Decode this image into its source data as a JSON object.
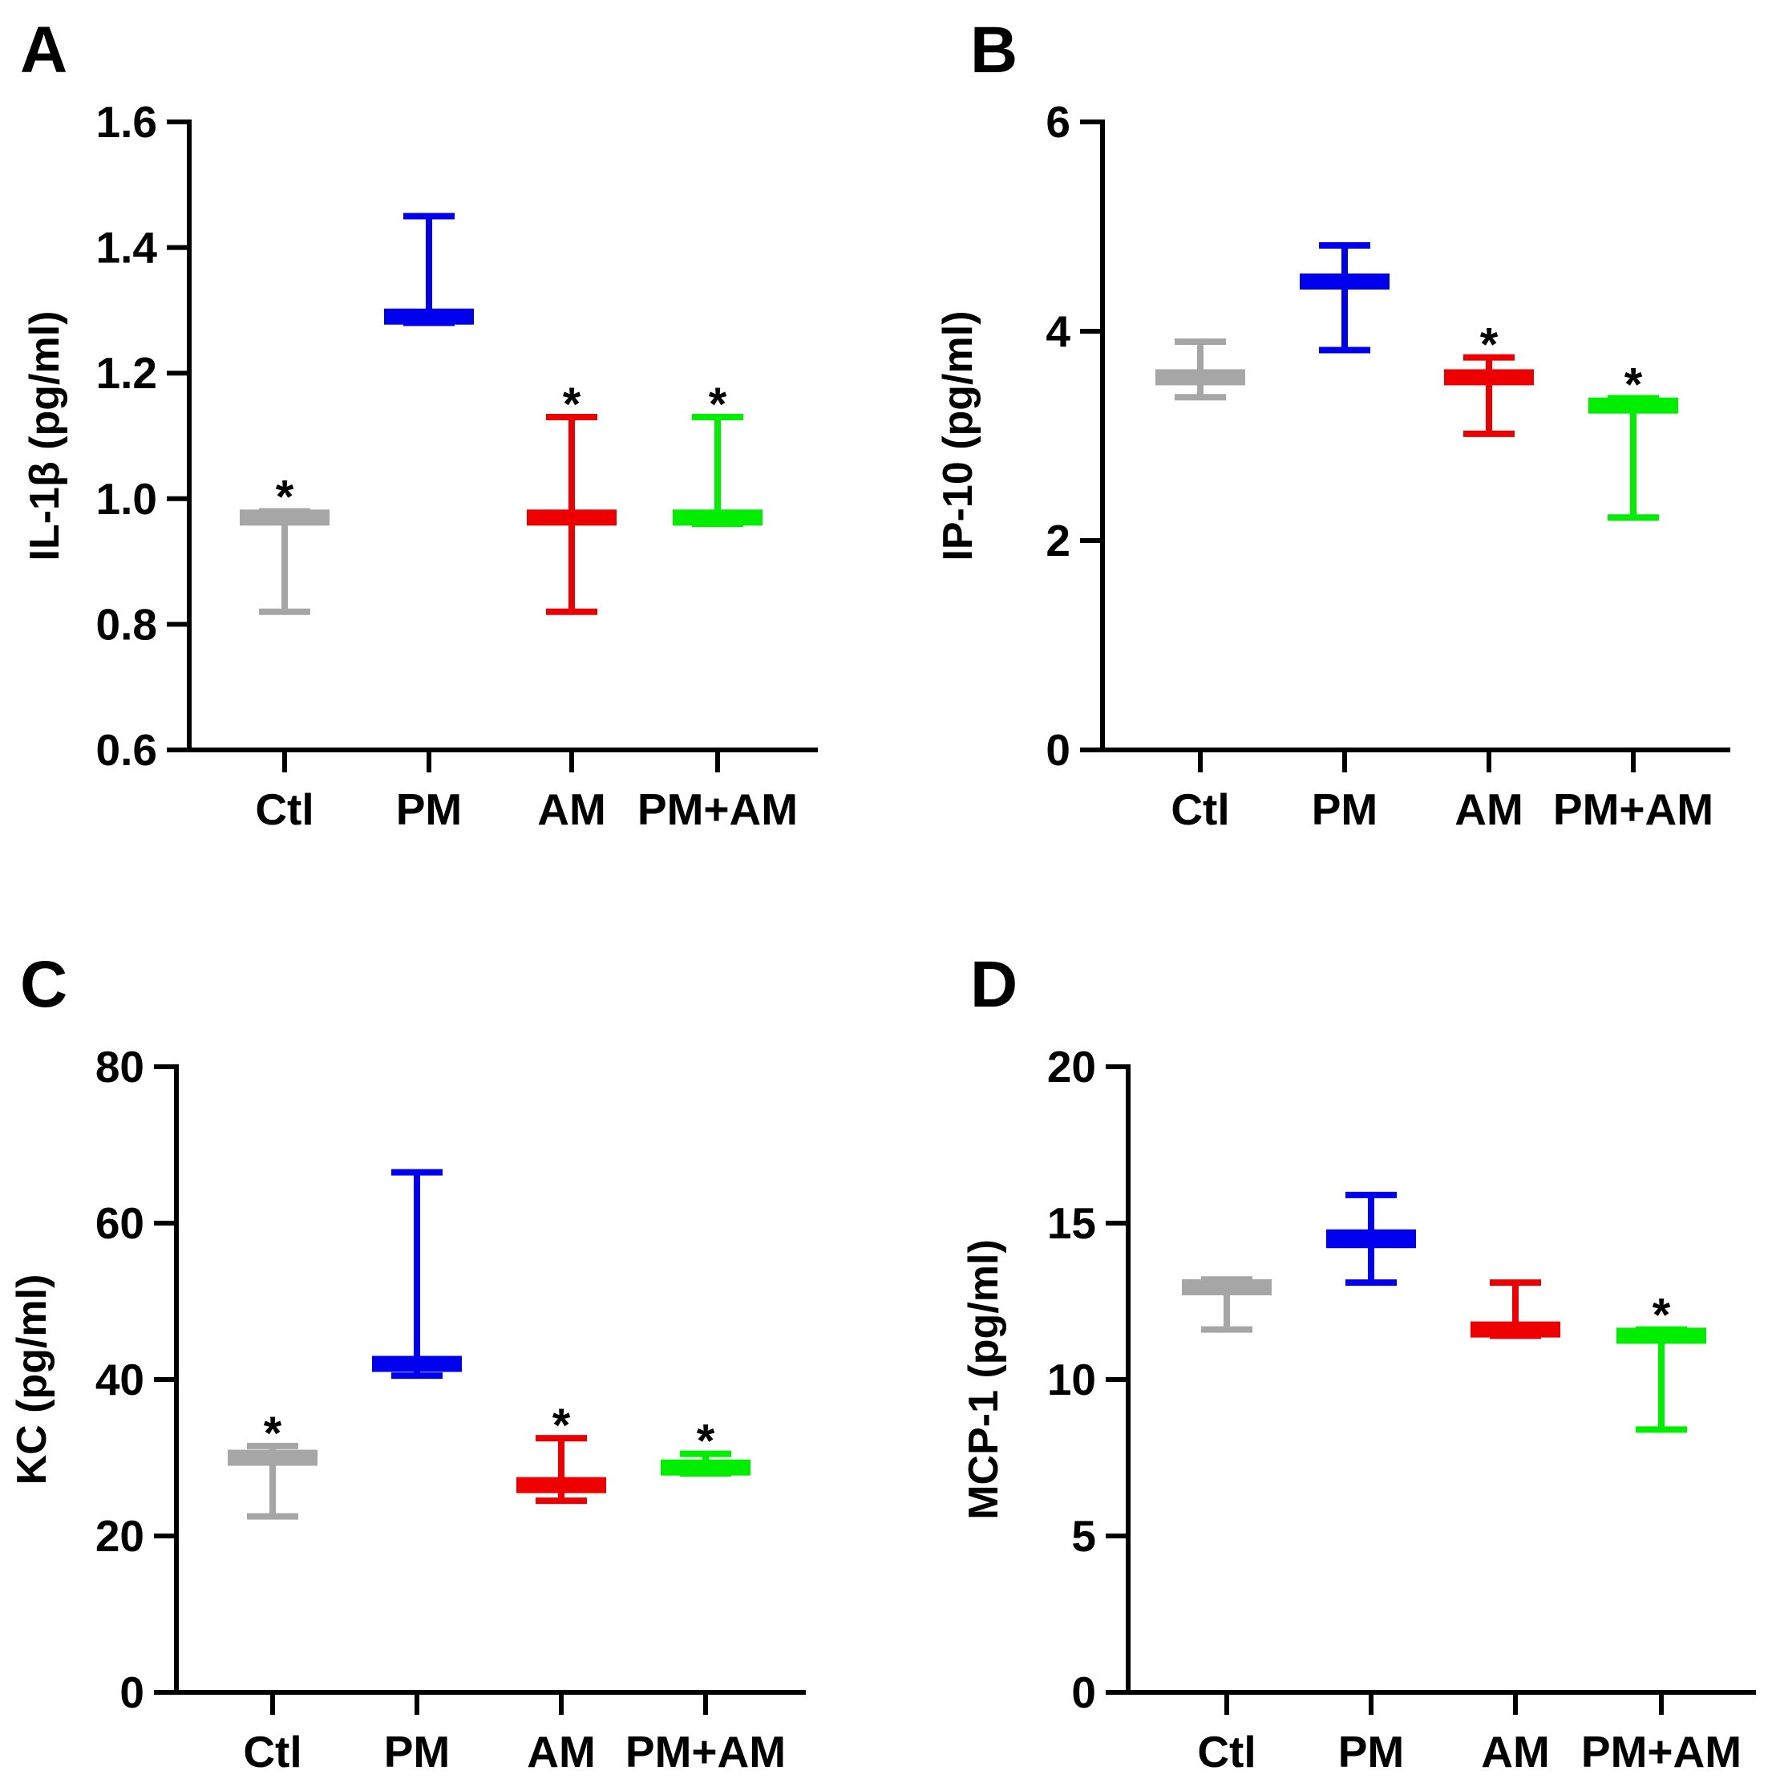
{
  "chart_data": [
    {
      "panel": "A",
      "type": "box",
      "ylabel": "IL-1β (pg/ml)",
      "ylim": [
        0.6,
        1.6
      ],
      "yticks": [
        "0.6",
        "0.8",
        "1.0",
        "1.2",
        "1.4",
        "1.6"
      ],
      "categories": [
        "Ctl",
        "PM",
        "AM",
        "PM+AM"
      ],
      "colors": [
        "#a6a6a6",
        "#0000ee",
        "#ee0000",
        "#00ee00"
      ],
      "groups": [
        {
          "name": "Ctl",
          "min": 0.82,
          "q1": 0.96,
          "median": 0.97,
          "q3": 0.98,
          "max": 0.98,
          "sig": "*"
        },
        {
          "name": "PM",
          "min": 1.28,
          "q1": 1.28,
          "median": 1.29,
          "q3": 1.3,
          "max": 1.45,
          "sig": ""
        },
        {
          "name": "AM",
          "min": 0.82,
          "q1": 0.96,
          "median": 0.97,
          "q3": 0.98,
          "max": 1.13,
          "sig": "*"
        },
        {
          "name": "PM+AM",
          "min": 0.96,
          "q1": 0.96,
          "median": 0.97,
          "q3": 0.98,
          "max": 1.13,
          "sig": "*"
        }
      ]
    },
    {
      "panel": "B",
      "type": "box",
      "ylabel": "IP-10 (pg/ml)",
      "ylim": [
        0,
        6
      ],
      "yticks": [
        "0",
        "2",
        "4",
        "6"
      ],
      "categories": [
        "Ctl",
        "PM",
        "AM",
        "PM+AM"
      ],
      "colors": [
        "#a6a6a6",
        "#0000ee",
        "#ee0000",
        "#00ee00"
      ],
      "groups": [
        {
          "name": "Ctl",
          "min": 3.37,
          "q1": 3.5,
          "median": 3.56,
          "q3": 3.62,
          "max": 3.9,
          "sig": ""
        },
        {
          "name": "PM",
          "min": 3.82,
          "q1": 4.4,
          "median": 4.47,
          "q3": 4.55,
          "max": 4.82,
          "sig": ""
        },
        {
          "name": "AM",
          "min": 3.02,
          "q1": 3.5,
          "median": 3.56,
          "q3": 3.62,
          "max": 3.75,
          "sig": "*"
        },
        {
          "name": "PM+AM",
          "min": 2.22,
          "q1": 3.22,
          "median": 3.29,
          "q3": 3.36,
          "max": 3.36,
          "sig": "*"
        }
      ]
    },
    {
      "panel": "C",
      "type": "box",
      "ylabel": "KC (pg/ml)",
      "ylim": [
        0,
        80
      ],
      "yticks": [
        "0",
        "20",
        "40",
        "60",
        "80"
      ],
      "categories": [
        "Ctl",
        "PM",
        "AM",
        "PM+AM"
      ],
      "colors": [
        "#a6a6a6",
        "#0000ee",
        "#ee0000",
        "#00ee00"
      ],
      "groups": [
        {
          "name": "Ctl",
          "min": 22.5,
          "q1": 29.0,
          "median": 30.0,
          "q3": 31.0,
          "max": 31.5,
          "sig": "*"
        },
        {
          "name": "PM",
          "min": 40.5,
          "q1": 41.0,
          "median": 42.0,
          "q3": 43.0,
          "max": 66.5,
          "sig": ""
        },
        {
          "name": "AM",
          "min": 24.5,
          "q1": 25.5,
          "median": 26.5,
          "q3": 27.5,
          "max": 32.5,
          "sig": "*"
        },
        {
          "name": "PM+AM",
          "min": 28.0,
          "q1": 28.0,
          "median": 28.8,
          "q3": 29.5,
          "max": 30.5,
          "sig": "*"
        }
      ]
    },
    {
      "panel": "D",
      "type": "box",
      "ylabel": "MCP-1 (pg/ml)",
      "ylim": [
        0,
        20
      ],
      "yticks": [
        "0",
        "5",
        "10",
        "15",
        "20"
      ],
      "categories": [
        "Ctl",
        "PM",
        "AM",
        "PM+AM"
      ],
      "colors": [
        "#a6a6a6",
        "#0000ee",
        "#ee0000",
        "#00ee00"
      ],
      "groups": [
        {
          "name": "Ctl",
          "min": 11.6,
          "q1": 12.7,
          "median": 12.9,
          "q3": 13.2,
          "max": 13.2,
          "sig": ""
        },
        {
          "name": "PM",
          "min": 13.1,
          "q1": 14.2,
          "median": 14.5,
          "q3": 14.8,
          "max": 15.9,
          "sig": ""
        },
        {
          "name": "AM",
          "min": 11.4,
          "q1": 11.4,
          "median": 11.6,
          "q3": 11.8,
          "max": 13.1,
          "sig": ""
        },
        {
          "name": "PM+AM",
          "min": 8.4,
          "q1": 11.2,
          "median": 11.4,
          "q3": 11.6,
          "max": 11.6,
          "sig": "*"
        }
      ]
    }
  ]
}
